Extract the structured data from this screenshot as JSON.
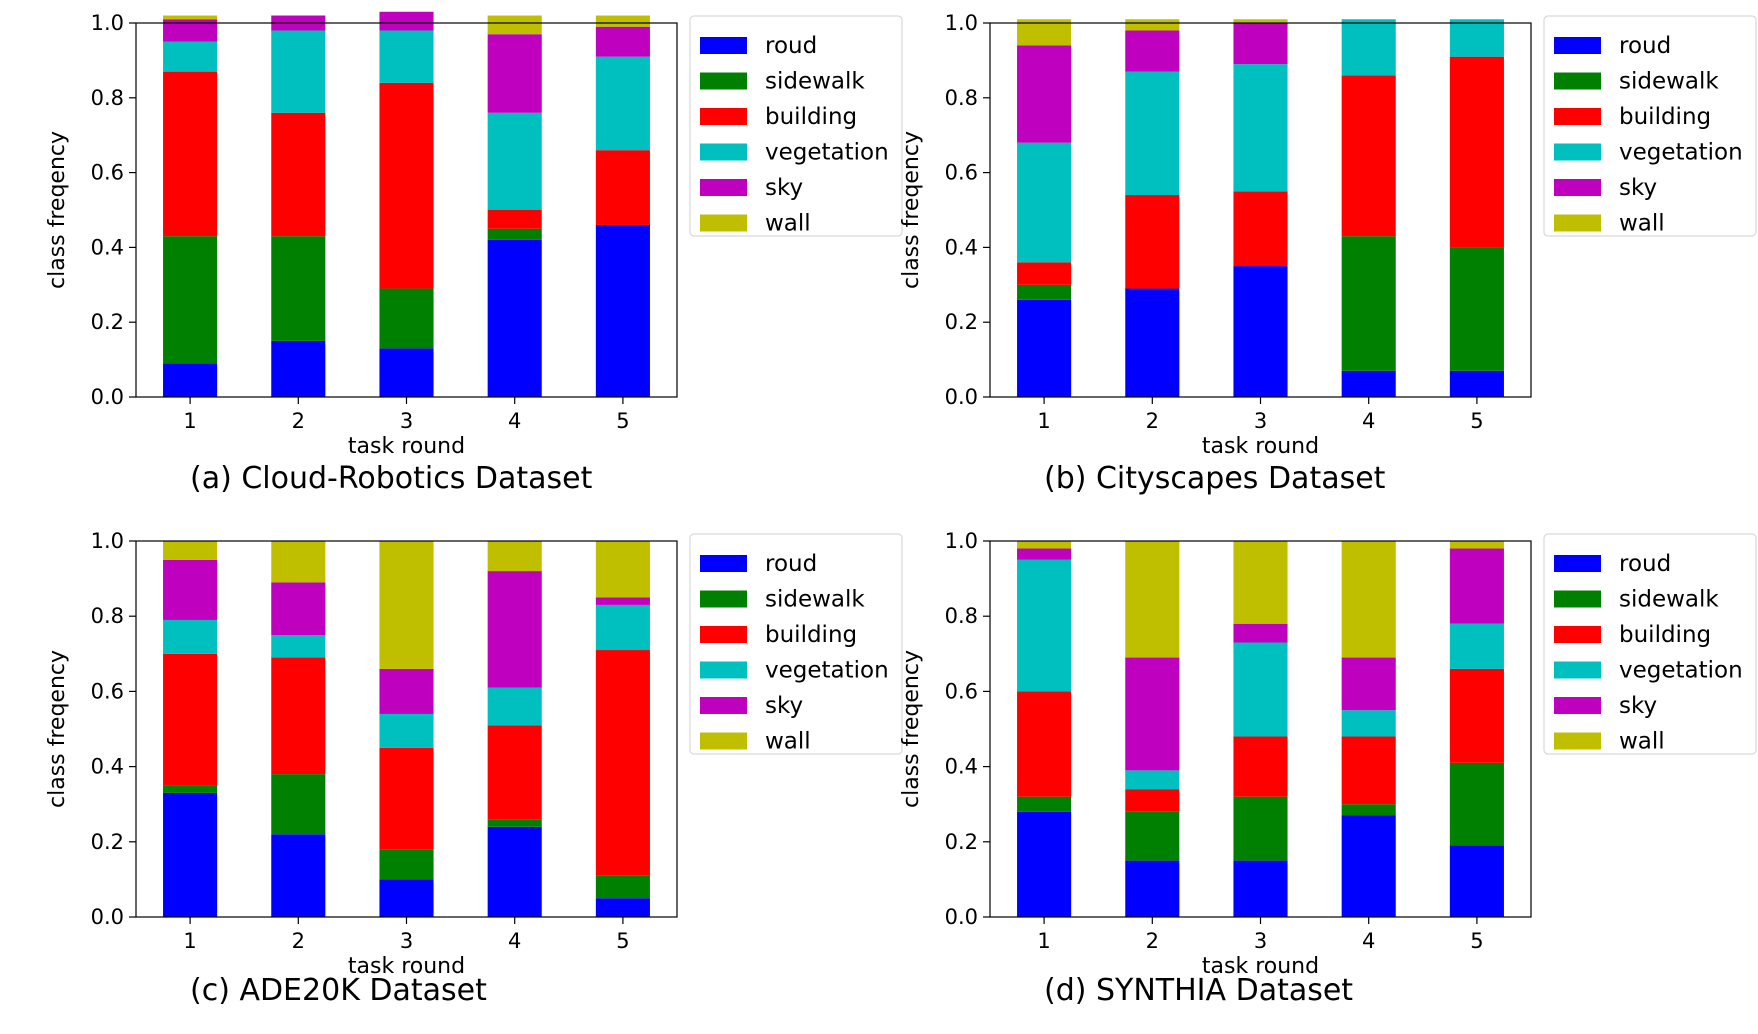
{
  "chart_data": [
    {
      "type": "bar",
      "stacked": true,
      "caption": "(a) Cloud-Robotics Dataset",
      "xlabel": "task round",
      "ylabel": "class freqency",
      "ylim": [
        0,
        1.0
      ],
      "yticks": [
        "0.0",
        "0.2",
        "0.4",
        "0.6",
        "0.8",
        "1.0"
      ],
      "categories": [
        "1",
        "2",
        "3",
        "4",
        "5"
      ],
      "legend_position": "outside-right",
      "series": [
        {
          "name": "roud",
          "color": "#0000ff",
          "values": [
            0.09,
            0.15,
            0.13,
            0.42,
            0.46
          ]
        },
        {
          "name": "sidewalk",
          "color": "#008000",
          "values": [
            0.34,
            0.28,
            0.16,
            0.03,
            0.0
          ]
        },
        {
          "name": "building",
          "color": "#ff0000",
          "values": [
            0.44,
            0.33,
            0.55,
            0.05,
            0.2
          ]
        },
        {
          "name": "vegetation",
          "color": "#00bfbf",
          "values": [
            0.08,
            0.22,
            0.14,
            0.26,
            0.25
          ]
        },
        {
          "name": "sky",
          "color": "#bf00bf",
          "values": [
            0.06,
            0.04,
            0.05,
            0.21,
            0.08
          ]
        },
        {
          "name": "wall",
          "color": "#bfbf00",
          "values": [
            0.01,
            0.0,
            0.0,
            0.05,
            0.03
          ]
        }
      ]
    },
    {
      "type": "bar",
      "stacked": true,
      "caption": "(b) Cityscapes Dataset",
      "xlabel": "task round",
      "ylabel": "class freqency",
      "ylim": [
        0,
        1.0
      ],
      "yticks": [
        "0.0",
        "0.2",
        "0.4",
        "0.6",
        "0.8",
        "1.0"
      ],
      "categories": [
        "1",
        "2",
        "3",
        "4",
        "5"
      ],
      "legend_position": "outside-right",
      "series": [
        {
          "name": "roud",
          "color": "#0000ff",
          "values": [
            0.26,
            0.29,
            0.35,
            0.07,
            0.07
          ]
        },
        {
          "name": "sidewalk",
          "color": "#008000",
          "values": [
            0.04,
            0.0,
            0.0,
            0.36,
            0.33
          ]
        },
        {
          "name": "building",
          "color": "#ff0000",
          "values": [
            0.06,
            0.25,
            0.2,
            0.43,
            0.51
          ]
        },
        {
          "name": "vegetation",
          "color": "#00bfbf",
          "values": [
            0.32,
            0.33,
            0.34,
            0.15,
            0.1
          ]
        },
        {
          "name": "sky",
          "color": "#bf00bf",
          "values": [
            0.26,
            0.11,
            0.11,
            0.0,
            0.0
          ]
        },
        {
          "name": "wall",
          "color": "#bfbf00",
          "values": [
            0.07,
            0.03,
            0.01,
            0.0,
            0.0
          ]
        }
      ]
    },
    {
      "type": "bar",
      "stacked": true,
      "caption": "(c) ADE20K Dataset",
      "xlabel": "task round",
      "ylabel": "class freqency",
      "ylim": [
        0,
        1.0
      ],
      "yticks": [
        "0.0",
        "0.2",
        "0.4",
        "0.6",
        "0.8",
        "1.0"
      ],
      "categories": [
        "1",
        "2",
        "3",
        "4",
        "5"
      ],
      "legend_position": "outside-right",
      "series": [
        {
          "name": "roud",
          "color": "#0000ff",
          "values": [
            0.33,
            0.22,
            0.1,
            0.24,
            0.05
          ]
        },
        {
          "name": "sidewalk",
          "color": "#008000",
          "values": [
            0.02,
            0.16,
            0.08,
            0.02,
            0.06
          ]
        },
        {
          "name": "building",
          "color": "#ff0000",
          "values": [
            0.35,
            0.31,
            0.27,
            0.25,
            0.6
          ]
        },
        {
          "name": "vegetation",
          "color": "#00bfbf",
          "values": [
            0.09,
            0.06,
            0.09,
            0.1,
            0.12
          ]
        },
        {
          "name": "sky",
          "color": "#bf00bf",
          "values": [
            0.16,
            0.14,
            0.12,
            0.31,
            0.02
          ]
        },
        {
          "name": "wall",
          "color": "#bfbf00",
          "values": [
            0.05,
            0.11,
            0.34,
            0.08,
            0.15
          ]
        }
      ]
    },
    {
      "type": "bar",
      "stacked": true,
      "caption": "(d) SYNTHIA Dataset",
      "xlabel": "task round",
      "ylabel": "class freqency",
      "ylim": [
        0,
        1.0
      ],
      "yticks": [
        "0.0",
        "0.2",
        "0.4",
        "0.6",
        "0.8",
        "1.0"
      ],
      "categories": [
        "1",
        "2",
        "3",
        "4",
        "5"
      ],
      "legend_position": "outside-right",
      "series": [
        {
          "name": "roud",
          "color": "#0000ff",
          "values": [
            0.28,
            0.15,
            0.15,
            0.27,
            0.19
          ]
        },
        {
          "name": "sidewalk",
          "color": "#008000",
          "values": [
            0.04,
            0.13,
            0.17,
            0.03,
            0.22
          ]
        },
        {
          "name": "building",
          "color": "#ff0000",
          "values": [
            0.28,
            0.06,
            0.16,
            0.18,
            0.25
          ]
        },
        {
          "name": "vegetation",
          "color": "#00bfbf",
          "values": [
            0.35,
            0.05,
            0.25,
            0.07,
            0.12
          ]
        },
        {
          "name": "sky",
          "color": "#bf00bf",
          "values": [
            0.03,
            0.3,
            0.05,
            0.14,
            0.2
          ]
        },
        {
          "name": "wall",
          "color": "#bfbf00",
          "values": [
            0.02,
            0.31,
            0.22,
            0.31,
            0.02
          ]
        }
      ]
    }
  ]
}
